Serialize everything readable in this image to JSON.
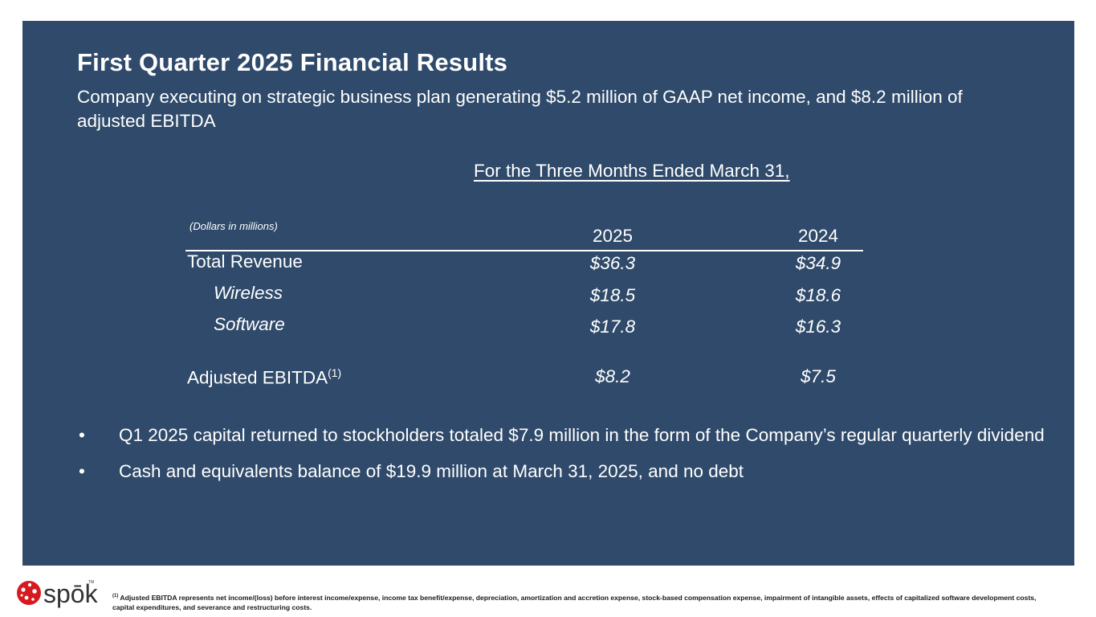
{
  "title": "First Quarter 2025 Financial Results",
  "subtitle": "Company executing on strategic business plan generating $5.2 million of GAAP net income, and $8.2 million of adjusted EBITDA",
  "table": {
    "period_header": "For the Three Months Ended March 31,",
    "units_note": "(Dollars in millions)",
    "years": [
      "2025",
      "2024"
    ],
    "rows": [
      {
        "label": "Total Revenue",
        "v2025": "$36.3",
        "v2024": "$34.9"
      },
      {
        "label": "Wireless",
        "v2025": "$18.5",
        "v2024": "$18.6"
      },
      {
        "label": "Software",
        "v2025": "$17.8",
        "v2024": "$16.3"
      },
      {
        "label": "Adjusted EBITDA",
        "footnote_mark": "(1)",
        "v2025": "$8.2",
        "v2024": "$7.5"
      }
    ]
  },
  "bullets": [
    "Q1 2025 capital returned to stockholders totaled $7.9 million in the form of the Company’s regular quarterly dividend",
    "Cash and equivalents balance of $19.9 million at March 31, 2025, and no debt"
  ],
  "bullet_symbol": "•",
  "footer": {
    "logo_text": "spōk",
    "logo_tm": "TM",
    "footnote_mark": "(1)",
    "footnote": "Adjusted EBITDA represents net income/(loss) before interest income/expense, income tax benefit/expense, depreciation, amortization and accretion expense, stock-based compensation expense, impairment of intangible assets, effects of capitalized software development costs, capital expenditures, and severance and restructuring costs."
  },
  "colors": {
    "panel": "#2f4a6a",
    "brand_red": "#d71920"
  }
}
